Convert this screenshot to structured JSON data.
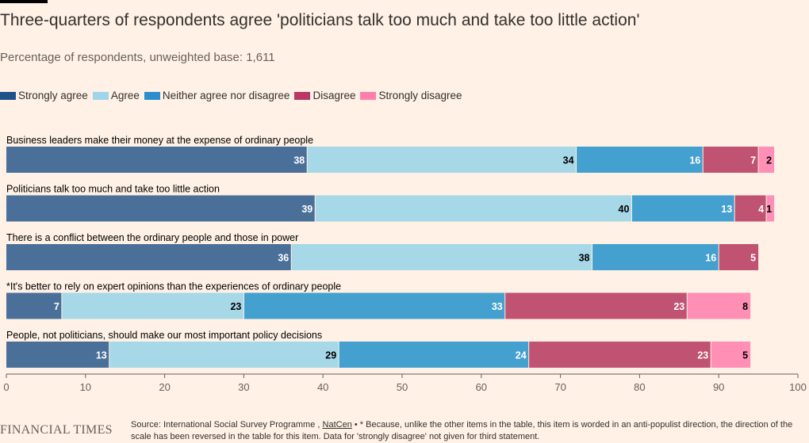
{
  "title": "Three-quarters of respondents agree 'politicians talk too much and take too little action'",
  "subtitle": "Percentage of respondents, unweighted base: 1,611",
  "footer": {
    "logo": "FINANCIAL TIMES",
    "source_prefix": "Source: International Social Survey Programme ,",
    "source_link": "NatCen",
    "source_note": "• * Because, unlike the other items in the table, this item is worded in an anti-populist direction, the direction of the scale has been reversed in the table for this item. Data for 'strongly disagree' not given for third statement."
  },
  "chart_data": {
    "type": "bar",
    "orientation": "horizontal-stacked",
    "categories": [
      "Business leaders make their money at the expense of ordinary people",
      "Politicians talk too much and take too little action",
      "There is a conflict between the ordinary people and those in power",
      "*It's better to rely on expert opinions than the experiences of ordinary people",
      "People, not politicians, should make our most important policy decisions"
    ],
    "series": [
      {
        "name": "Strongly agree",
        "color": "#4a7099",
        "label_color": "#ffffff",
        "values": [
          38,
          39,
          36,
          7,
          13
        ]
      },
      {
        "name": "Agree",
        "color": "#a6d8e8",
        "label_color": "#000000",
        "values": [
          34,
          40,
          38,
          23,
          29
        ]
      },
      {
        "name": "Neither agree nor disagree",
        "color": "#44a0cf",
        "label_color": "#ffffff",
        "values": [
          16,
          13,
          16,
          33,
          24
        ]
      },
      {
        "name": "Disagree",
        "color": "#c05272",
        "label_color": "#ffffff",
        "values": [
          7,
          4,
          5,
          23,
          23
        ]
      },
      {
        "name": "Strongly disagree",
        "color": "#ff8fb4",
        "label_color": "#000000",
        "values": [
          2,
          1,
          null,
          8,
          5
        ]
      }
    ],
    "xlim": [
      0,
      100
    ],
    "xticks": [
      0,
      10,
      20,
      30,
      40,
      50,
      60,
      70,
      80,
      90,
      100
    ],
    "legend_position": "top-left",
    "grid": false
  }
}
